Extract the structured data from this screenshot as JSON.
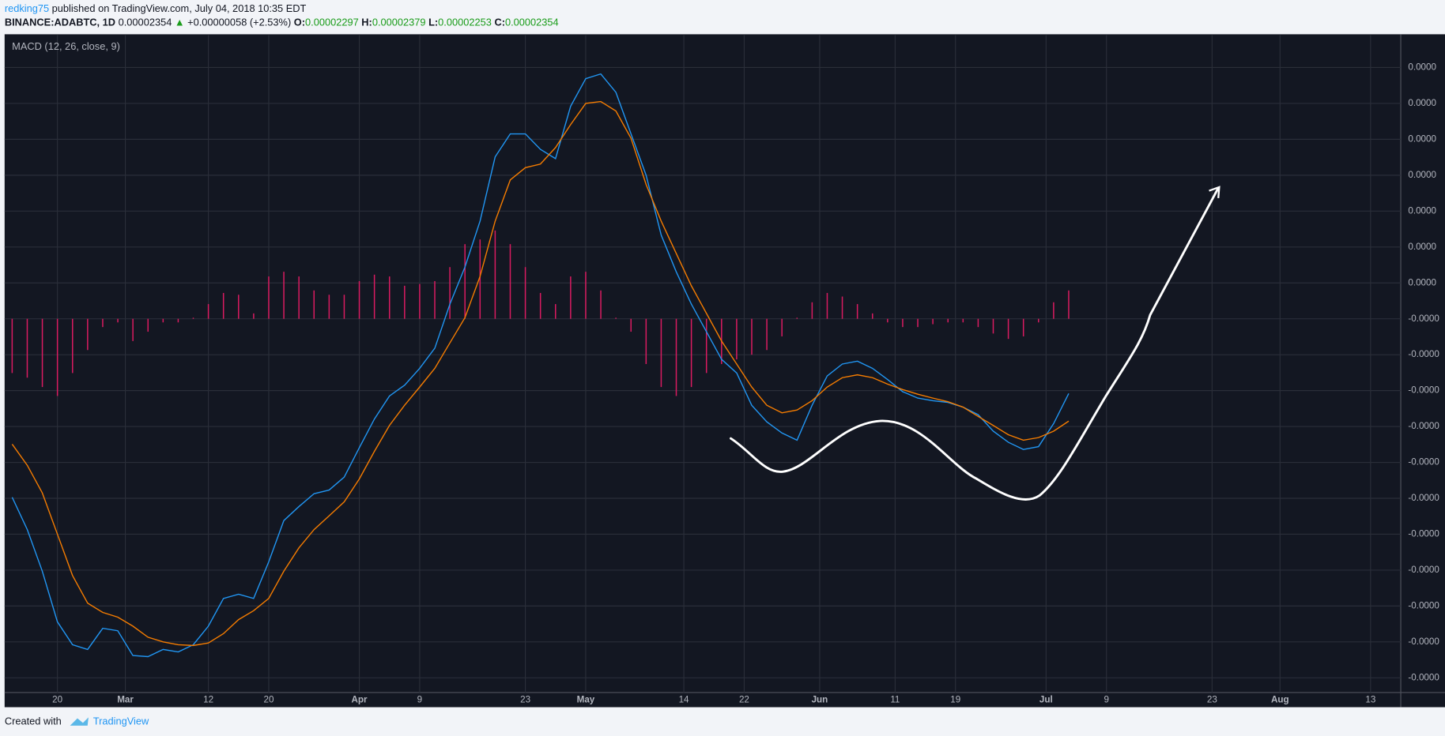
{
  "header": {
    "author": "redking75",
    "published": "published on TradingView.com, July 04, 2018 10:35 EDT",
    "symbol": "BINANCE:ADABTC, 1D",
    "last": "0.00002354",
    "arrow": "▲",
    "change": "+0.00000058 (+2.53%)",
    "ohlc": [
      {
        "label": "O:",
        "value": "0.00002297"
      },
      {
        "label": "H:",
        "value": "0.00002379"
      },
      {
        "label": "L:",
        "value": "0.00002253"
      },
      {
        "label": "C:",
        "value": "0.00002354"
      }
    ]
  },
  "footer": {
    "created": "Created with",
    "brand": "TradingView"
  },
  "chart_data": {
    "type": "line",
    "title": "MACD (12, 26, close, 9)",
    "grid": true,
    "xlim": [
      44,
      229
    ],
    "xticks": [
      {
        "value": 51,
        "label": "20"
      },
      {
        "value": 60,
        "label": "Mar"
      },
      {
        "value": 71,
        "label": "12"
      },
      {
        "value": 79,
        "label": "20"
      },
      {
        "value": 91,
        "label": "Apr"
      },
      {
        "value": 99,
        "label": "9"
      },
      {
        "value": 113,
        "label": "23"
      },
      {
        "value": 121,
        "label": "May"
      },
      {
        "value": 134,
        "label": "14"
      },
      {
        "value": 142,
        "label": "22"
      },
      {
        "value": 152,
        "label": "Jun"
      },
      {
        "value": 162,
        "label": "11"
      },
      {
        "value": 170,
        "label": "19"
      },
      {
        "value": 182,
        "label": "Jul"
      },
      {
        "value": 190,
        "label": "9"
      },
      {
        "value": 204,
        "label": "23"
      },
      {
        "value": 213,
        "label": "Aug"
      },
      {
        "value": 225,
        "label": "13"
      }
    ],
    "ylim": [
      -1.041e-06,
      7.9e-07
    ],
    "yticks": [
      {
        "value": 7e-07,
        "label": "0.0000"
      },
      {
        "value": 6e-07,
        "label": "0.0000"
      },
      {
        "value": 5e-07,
        "label": "0.0000"
      },
      {
        "value": 4e-07,
        "label": "0.0000"
      },
      {
        "value": 3e-07,
        "label": "0.0000"
      },
      {
        "value": 2e-07,
        "label": "0.0000"
      },
      {
        "value": 1e-07,
        "label": "0.0000"
      },
      {
        "value": 0,
        "label": "-0.0000"
      },
      {
        "value": -1e-07,
        "label": "-0.0000"
      },
      {
        "value": -2e-07,
        "label": "-0.0000"
      },
      {
        "value": -3e-07,
        "label": "-0.0000"
      },
      {
        "value": -4e-07,
        "label": "-0.0000"
      },
      {
        "value": -5e-07,
        "label": "-0.0000"
      },
      {
        "value": -6e-07,
        "label": "-0.0000"
      },
      {
        "value": -7e-07,
        "label": "-0.0000"
      },
      {
        "value": -8e-07,
        "label": "-0.0000"
      },
      {
        "value": -9e-07,
        "label": "-0.0000"
      },
      {
        "value": -1e-06,
        "label": "-0.0000"
      }
    ],
    "x": [
      45,
      47,
      49,
      51,
      53,
      55,
      57,
      59,
      61,
      63,
      65,
      67,
      69,
      71,
      73,
      75,
      77,
      79,
      81,
      83,
      85,
      87,
      89,
      91,
      93,
      95,
      97,
      99,
      101,
      103,
      105,
      107,
      109,
      111,
      113,
      115,
      117,
      119,
      121,
      123,
      125,
      127,
      129,
      131,
      133,
      135,
      137,
      139,
      141,
      143,
      145,
      147,
      149,
      151,
      153,
      155,
      157,
      159,
      161,
      163,
      165,
      167,
      169,
      171,
      173,
      175,
      177,
      179,
      181,
      183,
      185
    ],
    "series": [
      {
        "type": "histogram",
        "color": "#d81b60",
        "values": [
          -1.51e-07,
          -1.64e-07,
          -1.9e-07,
          -2.15e-07,
          -1.51e-07,
          -8.7e-08,
          -2.3e-08,
          -1e-08,
          -6.2e-08,
          -3.6e-08,
          -1e-08,
          -1e-08,
          3e-09,
          4.1e-08,
          7.2e-08,
          6.7e-08,
          1.5e-08,
          1.18e-07,
          1.31e-07,
          1.18e-07,
          7.9e-08,
          6.7e-08,
          6.7e-08,
          1.05e-07,
          1.23e-07,
          1.18e-07,
          9.2e-08,
          9.7e-08,
          1.05e-07,
          1.44e-07,
          2.08e-07,
          2.21e-07,
          2.46e-07,
          2.08e-07,
          1.44e-07,
          7.2e-08,
          4.1e-08,
          1.18e-07,
          1.31e-07,
          7.9e-08,
          3e-09,
          -3.6e-08,
          -1.26e-07,
          -1.9e-07,
          -2.15e-07,
          -1.9e-07,
          -1.51e-07,
          -1.26e-07,
          -1.13e-07,
          -1e-07,
          -8.7e-08,
          -4.9e-08,
          3e-09,
          4.6e-08,
          7.2e-08,
          6.2e-08,
          4.1e-08,
          1.5e-08,
          -1e-08,
          -2.3e-08,
          -2.3e-08,
          -1.5e-08,
          -1e-08,
          -1e-08,
          -2.3e-08,
          -4.1e-08,
          -5.6e-08,
          -4.9e-08,
          -1e-08,
          4.6e-08,
          7.9e-08
        ]
      },
      {
        "type": "line",
        "color": "#2196f3",
        "values": [
          -4.97e-07,
          -5.87e-07,
          -7.03e-07,
          -8.44e-07,
          -9.08e-07,
          -9.21e-07,
          -8.62e-07,
          -8.69e-07,
          -9.38e-07,
          -9.41e-07,
          -9.21e-07,
          -9.28e-07,
          -9.08e-07,
          -8.56e-07,
          -7.79e-07,
          -7.67e-07,
          -7.79e-07,
          -6.77e-07,
          -5.62e-07,
          -5.23e-07,
          -4.87e-07,
          -4.77e-07,
          -4.41e-07,
          -3.59e-07,
          -2.79e-07,
          -2.15e-07,
          -1.85e-07,
          -1.38e-07,
          -8.2e-08,
          4.1e-08,
          1.44e-07,
          2.72e-07,
          4.51e-07,
          5.15e-07,
          5.15e-07,
          4.72e-07,
          4.46e-07,
          5.92e-07,
          6.69e-07,
          6.82e-07,
          6.31e-07,
          5.15e-07,
          4e-07,
          2.33e-07,
          1.31e-07,
          4.1e-08,
          -3.6e-08,
          -1.13e-07,
          -1.51e-07,
          -2.41e-07,
          -2.87e-07,
          -3.18e-07,
          -3.38e-07,
          -2.41e-07,
          -1.59e-07,
          -1.26e-07,
          -1.18e-07,
          -1.38e-07,
          -1.69e-07,
          -2.03e-07,
          -2.21e-07,
          -2.28e-07,
          -2.33e-07,
          -2.46e-07,
          -2.67e-07,
          -3.13e-07,
          -3.44e-07,
          -3.64e-07,
          -3.56e-07,
          -2.92e-07,
          -2.08e-07
        ]
      },
      {
        "type": "line",
        "color": "#f57c00",
        "values": [
          -3.49e-07,
          -4.08e-07,
          -4.85e-07,
          -6e-07,
          -7.15e-07,
          -7.92e-07,
          -8.18e-07,
          -8.31e-07,
          -8.56e-07,
          -8.87e-07,
          -9e-07,
          -9.08e-07,
          -9.1e-07,
          -9.03e-07,
          -8.77e-07,
          -8.38e-07,
          -8.13e-07,
          -7.79e-07,
          -7.03e-07,
          -6.38e-07,
          -5.87e-07,
          -5.49e-07,
          -5.1e-07,
          -4.46e-07,
          -3.69e-07,
          -2.97e-07,
          -2.41e-07,
          -1.9e-07,
          -1.38e-07,
          -6.7e-08,
          3e-09,
          1.18e-07,
          2.72e-07,
          3.87e-07,
          4.21e-07,
          4.31e-07,
          4.77e-07,
          5.41e-07,
          6e-07,
          6.05e-07,
          5.79e-07,
          5.03e-07,
          3.74e-07,
          2.72e-07,
          1.82e-07,
          9.2e-08,
          1.5e-08,
          -6.2e-08,
          -1.26e-07,
          -1.9e-07,
          -2.41e-07,
          -2.62e-07,
          -2.54e-07,
          -2.28e-07,
          -1.9e-07,
          -1.64e-07,
          -1.56e-07,
          -1.64e-07,
          -1.82e-07,
          -1.97e-07,
          -2.1e-07,
          -2.21e-07,
          -2.31e-07,
          -2.46e-07,
          -2.72e-07,
          -2.97e-07,
          -3.23e-07,
          -3.38e-07,
          -3.31e-07,
          -3.13e-07,
          -2.85e-07
        ]
      }
    ]
  }
}
